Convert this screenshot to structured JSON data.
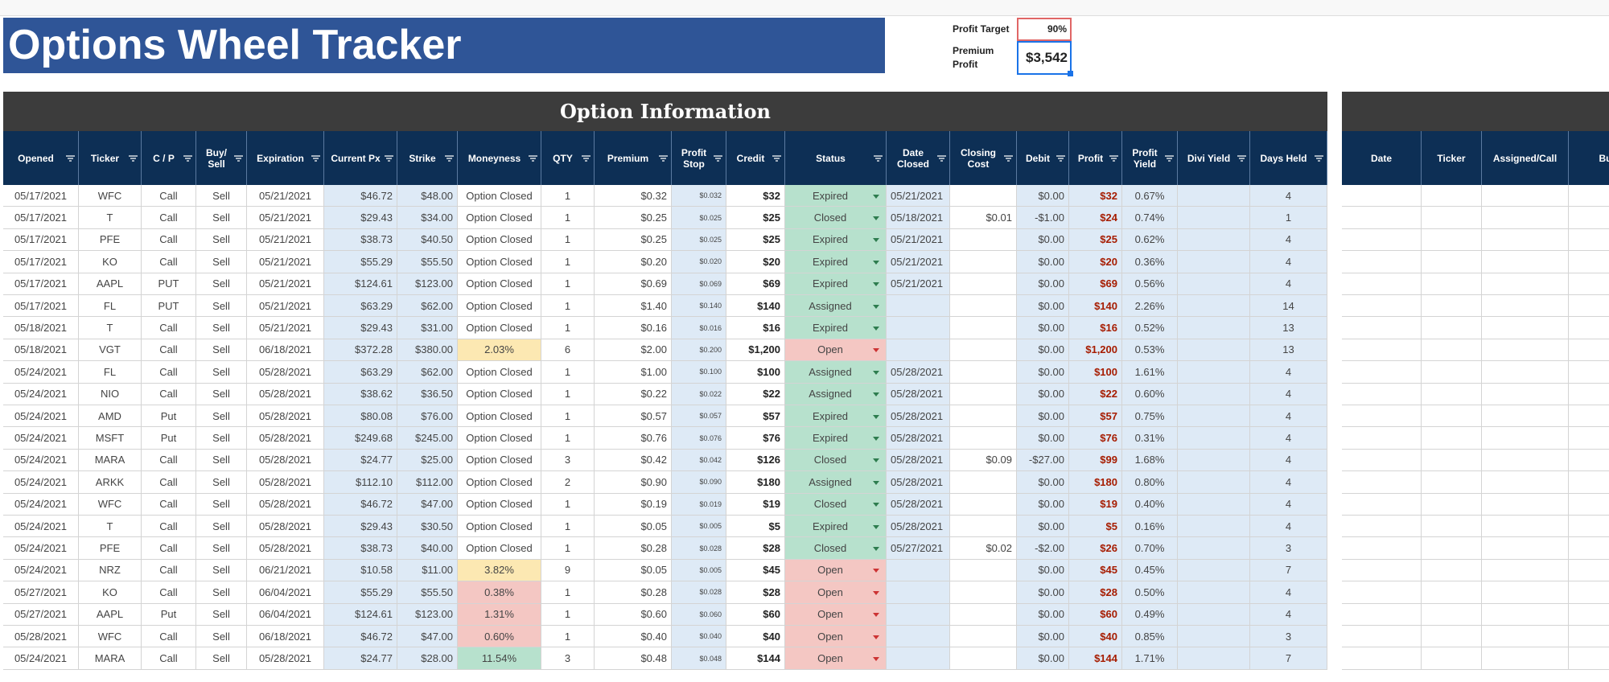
{
  "header": {
    "title": "Options Wheel Tracker"
  },
  "summary": {
    "profit_target": {
      "label": "Profit Target",
      "value": "90%"
    },
    "premium_profit": {
      "label": "Premium Profit",
      "value": "$3,542"
    }
  },
  "table": {
    "section_title": "Option Information",
    "columns": [
      "Opened",
      "Ticker",
      "C / P",
      "Buy/ Sell",
      "Expiration",
      "Current Px",
      "Strike",
      "Moneyness",
      "QTY",
      "Premium",
      "Profit Stop",
      "Credit",
      "Status",
      "Date Closed",
      "Closing Cost",
      "Debit",
      "Profit",
      "Profit Yield",
      "Divi Yield",
      "Days Held"
    ],
    "rows": [
      [
        "05/17/2021",
        "WFC",
        "Call",
        "Sell",
        "05/21/2021",
        "$46.72",
        "$48.00",
        "Option Closed",
        "1",
        "$0.32",
        "$0.032",
        "$32",
        "Expired",
        "05/21/2021",
        null,
        "$0.00",
        "$32",
        "0.67%",
        null,
        "4"
      ],
      [
        "05/17/2021",
        "T",
        "Call",
        "Sell",
        "05/21/2021",
        "$29.43",
        "$34.00",
        "Option Closed",
        "1",
        "$0.25",
        "$0.025",
        "$25",
        "Closed",
        "05/18/2021",
        "$0.01",
        "-$1.00",
        "$24",
        "0.74%",
        null,
        "1"
      ],
      [
        "05/17/2021",
        "PFE",
        "Call",
        "Sell",
        "05/21/2021",
        "$38.73",
        "$40.50",
        "Option Closed",
        "1",
        "$0.25",
        "$0.025",
        "$25",
        "Expired",
        "05/21/2021",
        null,
        "$0.00",
        "$25",
        "0.62%",
        null,
        "4"
      ],
      [
        "05/17/2021",
        "KO",
        "Call",
        "Sell",
        "05/21/2021",
        "$55.29",
        "$55.50",
        "Option Closed",
        "1",
        "$0.20",
        "$0.020",
        "$20",
        "Expired",
        "05/21/2021",
        null,
        "$0.00",
        "$20",
        "0.36%",
        null,
        "4"
      ],
      [
        "05/17/2021",
        "AAPL",
        "PUT",
        "Sell",
        "05/21/2021",
        "$124.61",
        "$123.00",
        "Option Closed",
        "1",
        "$0.69",
        "$0.069",
        "$69",
        "Expired",
        "05/21/2021",
        null,
        "$0.00",
        "$69",
        "0.56%",
        null,
        "4"
      ],
      [
        "05/17/2021",
        "FL",
        "PUT",
        "Sell",
        "05/21/2021",
        "$63.29",
        "$62.00",
        "Option Closed",
        "1",
        "$1.40",
        "$0.140",
        "$140",
        "Assigned",
        null,
        null,
        "$0.00",
        "$140",
        "2.26%",
        null,
        "14"
      ],
      [
        "05/18/2021",
        "T",
        "Call",
        "Sell",
        "05/21/2021",
        "$29.43",
        "$31.00",
        "Option Closed",
        "1",
        "$0.16",
        "$0.016",
        "$16",
        "Expired",
        null,
        null,
        "$0.00",
        "$16",
        "0.52%",
        null,
        "13"
      ],
      [
        "05/18/2021",
        "VGT",
        "Call",
        "Sell",
        "06/18/2021",
        "$372.28",
        "$380.00",
        "2.03%",
        "6",
        "$2.00",
        "$0.200",
        "$1,200",
        "Open",
        null,
        null,
        "$0.00",
        "$1,200",
        "0.53%",
        null,
        "13"
      ],
      [
        "05/24/2021",
        "FL",
        "Call",
        "Sell",
        "05/28/2021",
        "$63.29",
        "$62.00",
        "Option Closed",
        "1",
        "$1.00",
        "$0.100",
        "$100",
        "Assigned",
        "05/28/2021",
        null,
        "$0.00",
        "$100",
        "1.61%",
        null,
        "4"
      ],
      [
        "05/24/2021",
        "NIO",
        "Call",
        "Sell",
        "05/28/2021",
        "$38.62",
        "$36.50",
        "Option Closed",
        "1",
        "$0.22",
        "$0.022",
        "$22",
        "Assigned",
        "05/28/2021",
        null,
        "$0.00",
        "$22",
        "0.60%",
        null,
        "4"
      ],
      [
        "05/24/2021",
        "AMD",
        "Put",
        "Sell",
        "05/28/2021",
        "$80.08",
        "$76.00",
        "Option Closed",
        "1",
        "$0.57",
        "$0.057",
        "$57",
        "Expired",
        "05/28/2021",
        null,
        "$0.00",
        "$57",
        "0.75%",
        null,
        "4"
      ],
      [
        "05/24/2021",
        "MSFT",
        "Put",
        "Sell",
        "05/28/2021",
        "$249.68",
        "$245.00",
        "Option Closed",
        "1",
        "$0.76",
        "$0.076",
        "$76",
        "Expired",
        "05/28/2021",
        null,
        "$0.00",
        "$76",
        "0.31%",
        null,
        "4"
      ],
      [
        "05/24/2021",
        "MARA",
        "Call",
        "Sell",
        "05/28/2021",
        "$24.77",
        "$25.00",
        "Option Closed",
        "3",
        "$0.42",
        "$0.042",
        "$126",
        "Closed",
        "05/28/2021",
        "$0.09",
        "-$27.00",
        "$99",
        "1.68%",
        null,
        "4"
      ],
      [
        "05/24/2021",
        "ARKK",
        "Call",
        "Sell",
        "05/28/2021",
        "$112.10",
        "$112.00",
        "Option Closed",
        "2",
        "$0.90",
        "$0.090",
        "$180",
        "Assigned",
        "05/28/2021",
        null,
        "$0.00",
        "$180",
        "0.80%",
        null,
        "4"
      ],
      [
        "05/24/2021",
        "WFC",
        "Call",
        "Sell",
        "05/28/2021",
        "$46.72",
        "$47.00",
        "Option Closed",
        "1",
        "$0.19",
        "$0.019",
        "$19",
        "Closed",
        "05/28/2021",
        null,
        "$0.00",
        "$19",
        "0.40%",
        null,
        "4"
      ],
      [
        "05/24/2021",
        "T",
        "Call",
        "Sell",
        "05/28/2021",
        "$29.43",
        "$30.50",
        "Option Closed",
        "1",
        "$0.05",
        "$0.005",
        "$5",
        "Expired",
        "05/28/2021",
        null,
        "$0.00",
        "$5",
        "0.16%",
        null,
        "4"
      ],
      [
        "05/24/2021",
        "PFE",
        "Call",
        "Sell",
        "05/28/2021",
        "$38.73",
        "$40.00",
        "Option Closed",
        "1",
        "$0.28",
        "$0.028",
        "$28",
        "Closed",
        "05/27/2021",
        "$0.02",
        "-$2.00",
        "$26",
        "0.70%",
        null,
        "3"
      ],
      [
        "05/24/2021",
        "NRZ",
        "Call",
        "Sell",
        "06/21/2021",
        "$10.58",
        "$11.00",
        "3.82%",
        "9",
        "$0.05",
        "$0.005",
        "$45",
        "Open",
        null,
        null,
        "$0.00",
        "$45",
        "0.45%",
        null,
        "7"
      ],
      [
        "05/27/2021",
        "KO",
        "Call",
        "Sell",
        "06/04/2021",
        "$55.29",
        "$55.50",
        "0.38%",
        "1",
        "$0.28",
        "$0.028",
        "$28",
        "Open",
        null,
        null,
        "$0.00",
        "$28",
        "0.50%",
        null,
        "4"
      ],
      [
        "05/27/2021",
        "AAPL",
        "Put",
        "Sell",
        "06/04/2021",
        "$124.61",
        "$123.00",
        "1.31%",
        "1",
        "$0.60",
        "$0.060",
        "$60",
        "Open",
        null,
        null,
        "$0.00",
        "$60",
        "0.49%",
        null,
        "4"
      ],
      [
        "05/28/2021",
        "WFC",
        "Call",
        "Sell",
        "06/18/2021",
        "$46.72",
        "$47.00",
        "0.60%",
        "1",
        "$0.40",
        "$0.040",
        "$40",
        "Open",
        null,
        null,
        "$0.00",
        "$40",
        "0.85%",
        null,
        "3"
      ],
      [
        "05/24/2021",
        "MARA",
        "Call",
        "Sell",
        "05/28/2021",
        "$24.77",
        "$28.00",
        "11.54%",
        "3",
        "$0.48",
        "$0.048",
        "$144",
        "Open",
        null,
        null,
        "$0.00",
        "$144",
        "1.71%",
        null,
        "7"
      ]
    ]
  },
  "table2": {
    "columns": [
      "Date",
      "Ticker",
      "Assigned/Call",
      "Buy/S"
    ]
  }
}
